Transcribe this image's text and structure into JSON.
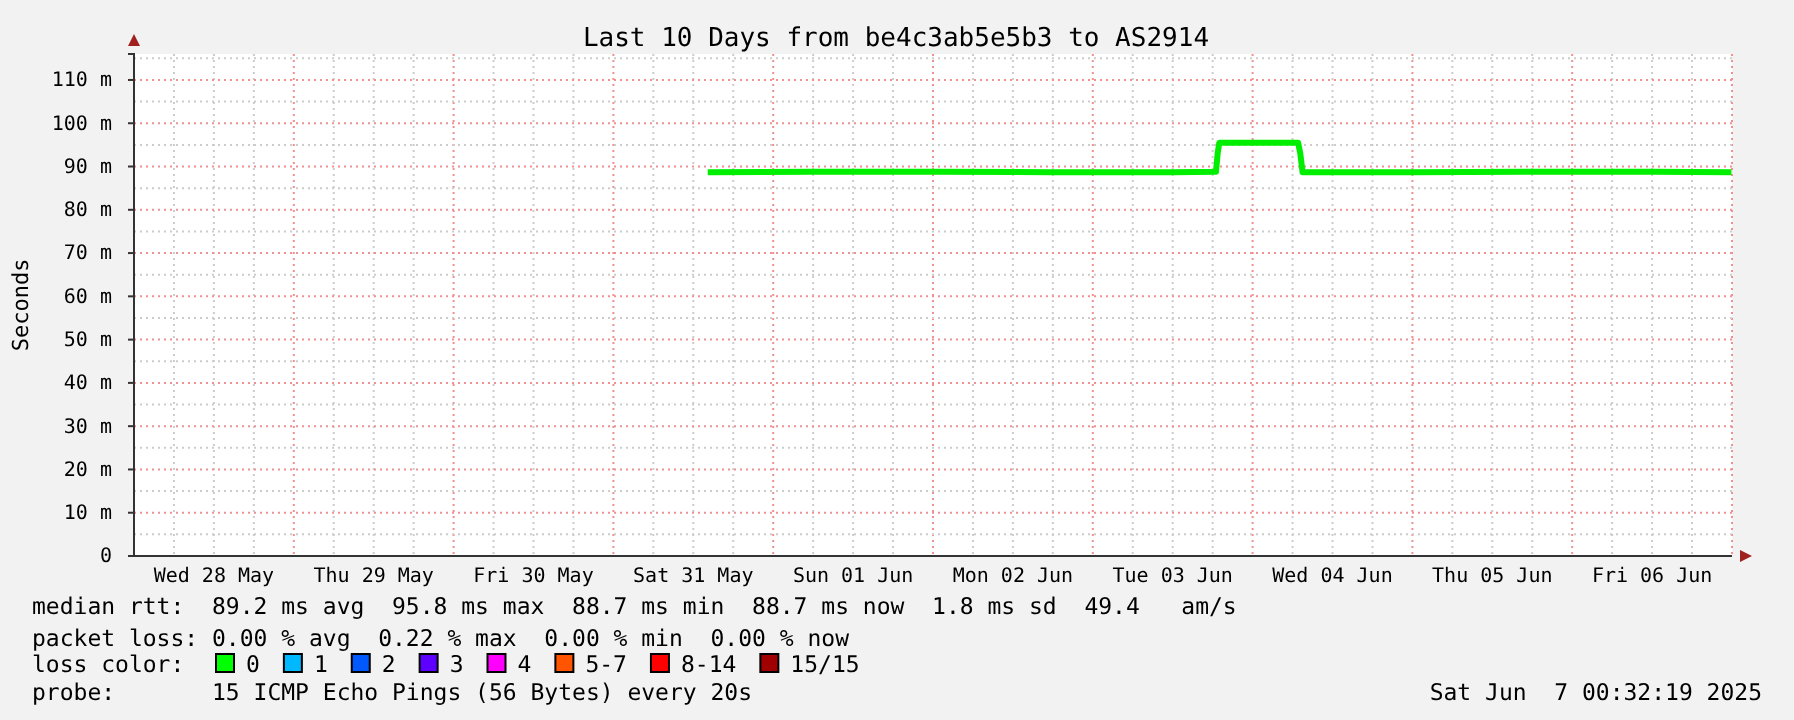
{
  "chart_data": {
    "type": "line",
    "title": "Last 10 Days from be4c3ab5e5b3 to AS2914",
    "ylabel": "Seconds",
    "xlim": [
      "2025-05-28T00:00",
      "2025-06-07T00:00"
    ],
    "xticks": [
      {
        "value": "2025-05-28T12:00",
        "label": "Wed 28 May"
      },
      {
        "value": "2025-05-29T12:00",
        "label": "Thu 29 May"
      },
      {
        "value": "2025-05-30T12:00",
        "label": "Fri 30 May"
      },
      {
        "value": "2025-05-31T12:00",
        "label": "Sat 31 May"
      },
      {
        "value": "2025-06-01T12:00",
        "label": "Sun 01 Jun"
      },
      {
        "value": "2025-06-02T12:00",
        "label": "Mon 02 Jun"
      },
      {
        "value": "2025-06-03T12:00",
        "label": "Tue 03 Jun"
      },
      {
        "value": "2025-06-04T12:00",
        "label": "Wed 04 Jun"
      },
      {
        "value": "2025-06-05T12:00",
        "label": "Thu 05 Jun"
      },
      {
        "value": "2025-06-06T12:00",
        "label": "Fri 06 Jun"
      }
    ],
    "ylim": [
      0,
      116
    ],
    "yticks": [
      {
        "value": 0,
        "label": "0"
      },
      {
        "value": 10,
        "label": "10 m"
      },
      {
        "value": 20,
        "label": "20 m"
      },
      {
        "value": 30,
        "label": "30 m"
      },
      {
        "value": 40,
        "label": "40 m"
      },
      {
        "value": 50,
        "label": "50 m"
      },
      {
        "value": 60,
        "label": "60 m"
      },
      {
        "value": 70,
        "label": "70 m"
      },
      {
        "value": 80,
        "label": "80 m"
      },
      {
        "value": 90,
        "label": "90 m"
      },
      {
        "value": 100,
        "label": "100 m"
      },
      {
        "value": 110,
        "label": "110 m"
      }
    ],
    "grid": true,
    "series": [
      {
        "color": "#00ee00",
        "x": [
          "2025-05-31T14:10",
          "2025-06-01T06:00",
          "2025-06-02T00:00",
          "2025-06-02T18:00",
          "2025-06-03T12:00",
          "2025-06-03T18:30",
          "2025-06-03T18:45",
          "2025-06-03T19:00",
          "2025-06-04T00:00",
          "2025-06-04T06:50",
          "2025-06-04T07:10",
          "2025-06-04T07:30",
          "2025-06-05T00:00",
          "2025-06-05T18:00",
          "2025-06-06T12:00",
          "2025-06-06T23:55"
        ],
        "values": [
          88.7,
          88.8,
          88.8,
          88.7,
          88.7,
          88.8,
          93,
          95.5,
          95.5,
          95.5,
          93,
          88.7,
          88.7,
          88.8,
          88.8,
          88.7
        ]
      }
    ],
    "annotations": [
      "median rtt:  89.2 ms avg  95.8 ms max  88.7 ms min  88.7 ms now  1.8 ms sd  49.4   am/s",
      "packet loss: 0.00 % avg  0.22 % max  0.00 % min  0.00 % now",
      "loss color:",
      "0",
      "1",
      "2",
      "3",
      "4",
      "5-7",
      "8-14",
      "15/15",
      "probe:       15 ICMP Echo Pings (56 Bytes) every 20s",
      "Sat Jun  7 00:32:19 2025"
    ]
  }
}
